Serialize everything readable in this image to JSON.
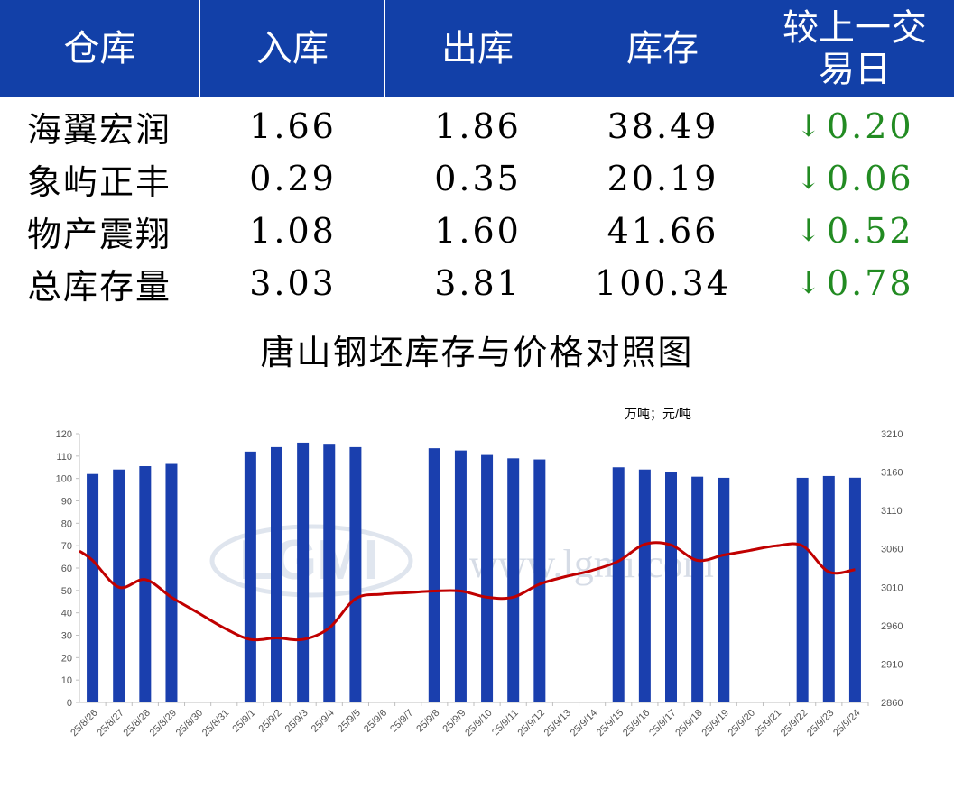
{
  "table": {
    "headers": [
      "仓库",
      "入库",
      "出库",
      "库存",
      "较上一交易日"
    ],
    "rows": [
      {
        "name": "海翼宏润",
        "in": "1.66",
        "out": "1.86",
        "stock": "38.49",
        "arrow": "↓",
        "change": "0.20"
      },
      {
        "name": "象屿正丰",
        "in": "0.29",
        "out": "0.35",
        "stock": "20.19",
        "arrow": "↓",
        "change": "0.06"
      },
      {
        "name": "物产震翔",
        "in": "1.08",
        "out": "1.60",
        "stock": "41.66",
        "arrow": "↓",
        "change": "0.52"
      },
      {
        "name": "总库存量",
        "in": "3.03",
        "out": "3.81",
        "stock": "100.34",
        "arrow": "↓",
        "change": "0.78"
      }
    ]
  },
  "colors": {
    "header_bg": "#1240a8",
    "bar": "#1a3fae",
    "line": "#c00000",
    "change": "#228b22"
  },
  "watermark": {
    "logo": "LGMI",
    "url": "www.lgmi.com"
  },
  "chart_data": {
    "type": "bar",
    "title": "唐山钢坯库存与价格对照图",
    "unit_label": "万吨；元/吨",
    "categories": [
      "25/8/26",
      "25/8/27",
      "25/8/28",
      "25/8/29",
      "25/8/30",
      "25/8/31",
      "25/9/1",
      "25/9/2",
      "25/9/3",
      "25/9/4",
      "25/9/5",
      "25/9/6",
      "25/9/7",
      "25/9/8",
      "25/9/9",
      "25/9/10",
      "25/9/11",
      "25/9/12",
      "25/9/13",
      "25/9/14",
      "25/9/15",
      "25/9/16",
      "25/9/17",
      "25/9/18",
      "25/9/19",
      "25/9/20",
      "25/9/21",
      "25/9/22",
      "25/9/23",
      "25/9/24"
    ],
    "y_left": {
      "min": 0,
      "max": 120,
      "step": 10
    },
    "y_right": {
      "min": 2860,
      "max": 3210,
      "ticks": [
        2860,
        2910,
        2960,
        3010,
        3060,
        3110,
        3160,
        3210
      ]
    },
    "series": [
      {
        "type": "bar",
        "axis": "left",
        "values": [
          102,
          104,
          105.5,
          106.5,
          null,
          null,
          112,
          114,
          116,
          115.5,
          114,
          null,
          null,
          113.5,
          112.5,
          110.5,
          109,
          108.5,
          null,
          null,
          105,
          104,
          103,
          100.8,
          100.3,
          null,
          null,
          100.3,
          101.1,
          100.34
        ]
      },
      {
        "type": "line",
        "axis": "right",
        "values": [
          3045,
          3010,
          3020,
          2997,
          2977,
          2957,
          2942,
          2944,
          2942,
          2957,
          2995,
          3001,
          3003,
          3005,
          3005,
          2997,
          2997,
          3014,
          3024,
          3032,
          3044,
          3066,
          3065,
          3045,
          3052,
          3058,
          3064,
          3064,
          3030,
          3033
        ]
      }
    ]
  }
}
